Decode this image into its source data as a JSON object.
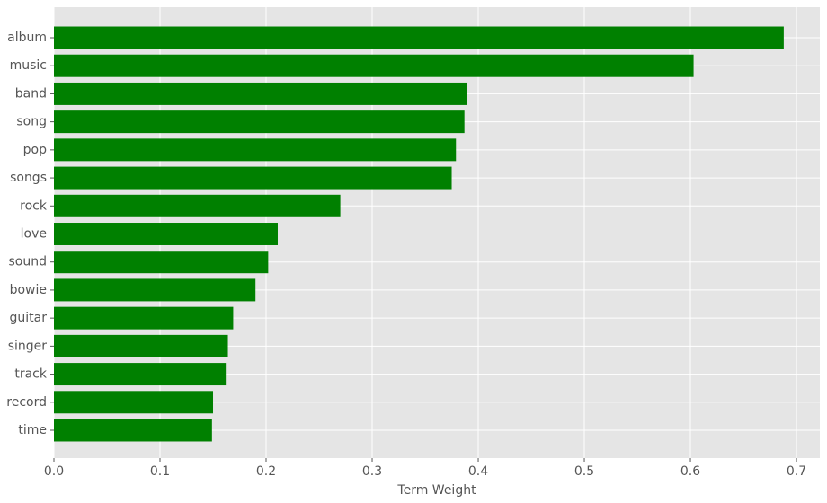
{
  "chart_data": {
    "type": "hbar",
    "x_label": "Term Weight",
    "categories": [
      "album",
      "music",
      "band",
      "song",
      "pop",
      "songs",
      "rock",
      "love",
      "sound",
      "bowie",
      "guitar",
      "singer",
      "track",
      "record",
      "time"
    ],
    "values": [
      0.688,
      0.603,
      0.389,
      0.387,
      0.379,
      0.375,
      0.27,
      0.211,
      0.202,
      0.19,
      0.169,
      0.164,
      0.162,
      0.15,
      0.149
    ],
    "color": "#008000",
    "xlim": [
      0,
      0.722
    ],
    "xticks": [
      {
        "value": 0,
        "label": "0.0"
      },
      0.1,
      0.2,
      0.3,
      0.4,
      0.5,
      0.6,
      0.7
    ],
    "grid": true
  }
}
